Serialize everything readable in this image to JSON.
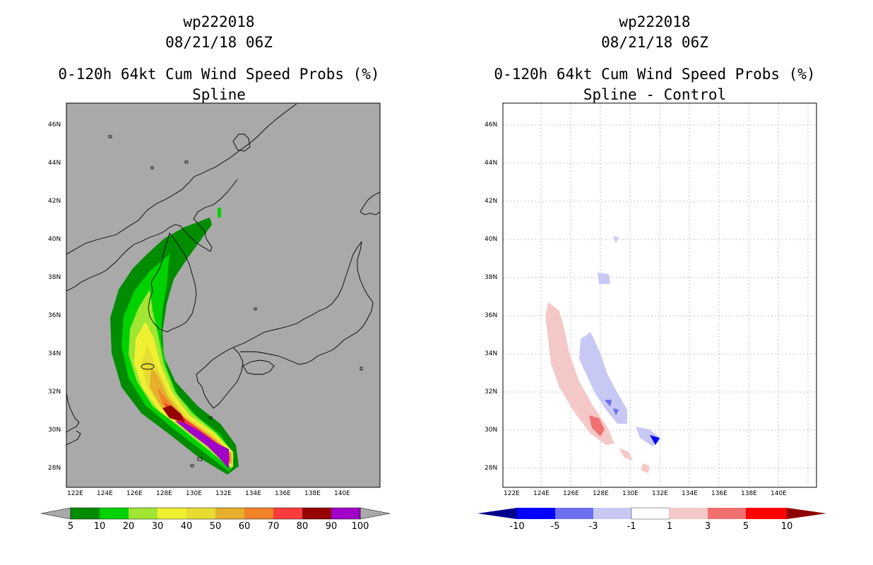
{
  "panels": [
    {
      "title_lines": [
        "wp222018",
        "08/21/18 06Z",
        "0-120h 64kt Cum Wind Speed Probs (%)",
        "Spline"
      ],
      "background": "#a9a9a9",
      "colorbar": {
        "labels": [
          "5",
          "10",
          "20",
          "30",
          "40",
          "50",
          "60",
          "70",
          "80",
          "90",
          "100"
        ],
        "colors": [
          "#008c00",
          "#00d200",
          "#a0e632",
          "#f0f032",
          "#e6dc32",
          "#e6af2d",
          "#f08228",
          "#fa3c3c",
          "#960000",
          "#a000c8"
        ],
        "end_color": "#a9a9a9"
      }
    },
    {
      "title_lines": [
        "wp222018",
        "08/21/18 06Z",
        "0-120h 64kt Cum Wind Speed Probs (%)",
        "Spline - Control"
      ],
      "background": "#ffffff",
      "colorbar": {
        "labels": [
          "-10",
          "-5",
          "-3",
          "-1",
          "1",
          "3",
          "5",
          "10"
        ],
        "colors": [
          "#0000ff",
          "#6e6ef0",
          "#c8c8f5",
          "#ffffff",
          "#f5c8c8",
          "#f07070",
          "#ff0000"
        ],
        "end_left_color": "#00008c",
        "end_right_color": "#8c0000"
      }
    }
  ],
  "map": {
    "lon_labels": [
      "122E",
      "124E",
      "126E",
      "128E",
      "130E",
      "132E",
      "134E",
      "136E",
      "138E",
      "140E"
    ],
    "lat_labels": [
      "28N",
      "30N",
      "32N",
      "34N",
      "36N",
      "38N",
      "40N",
      "42N",
      "44N",
      "46N"
    ]
  }
}
